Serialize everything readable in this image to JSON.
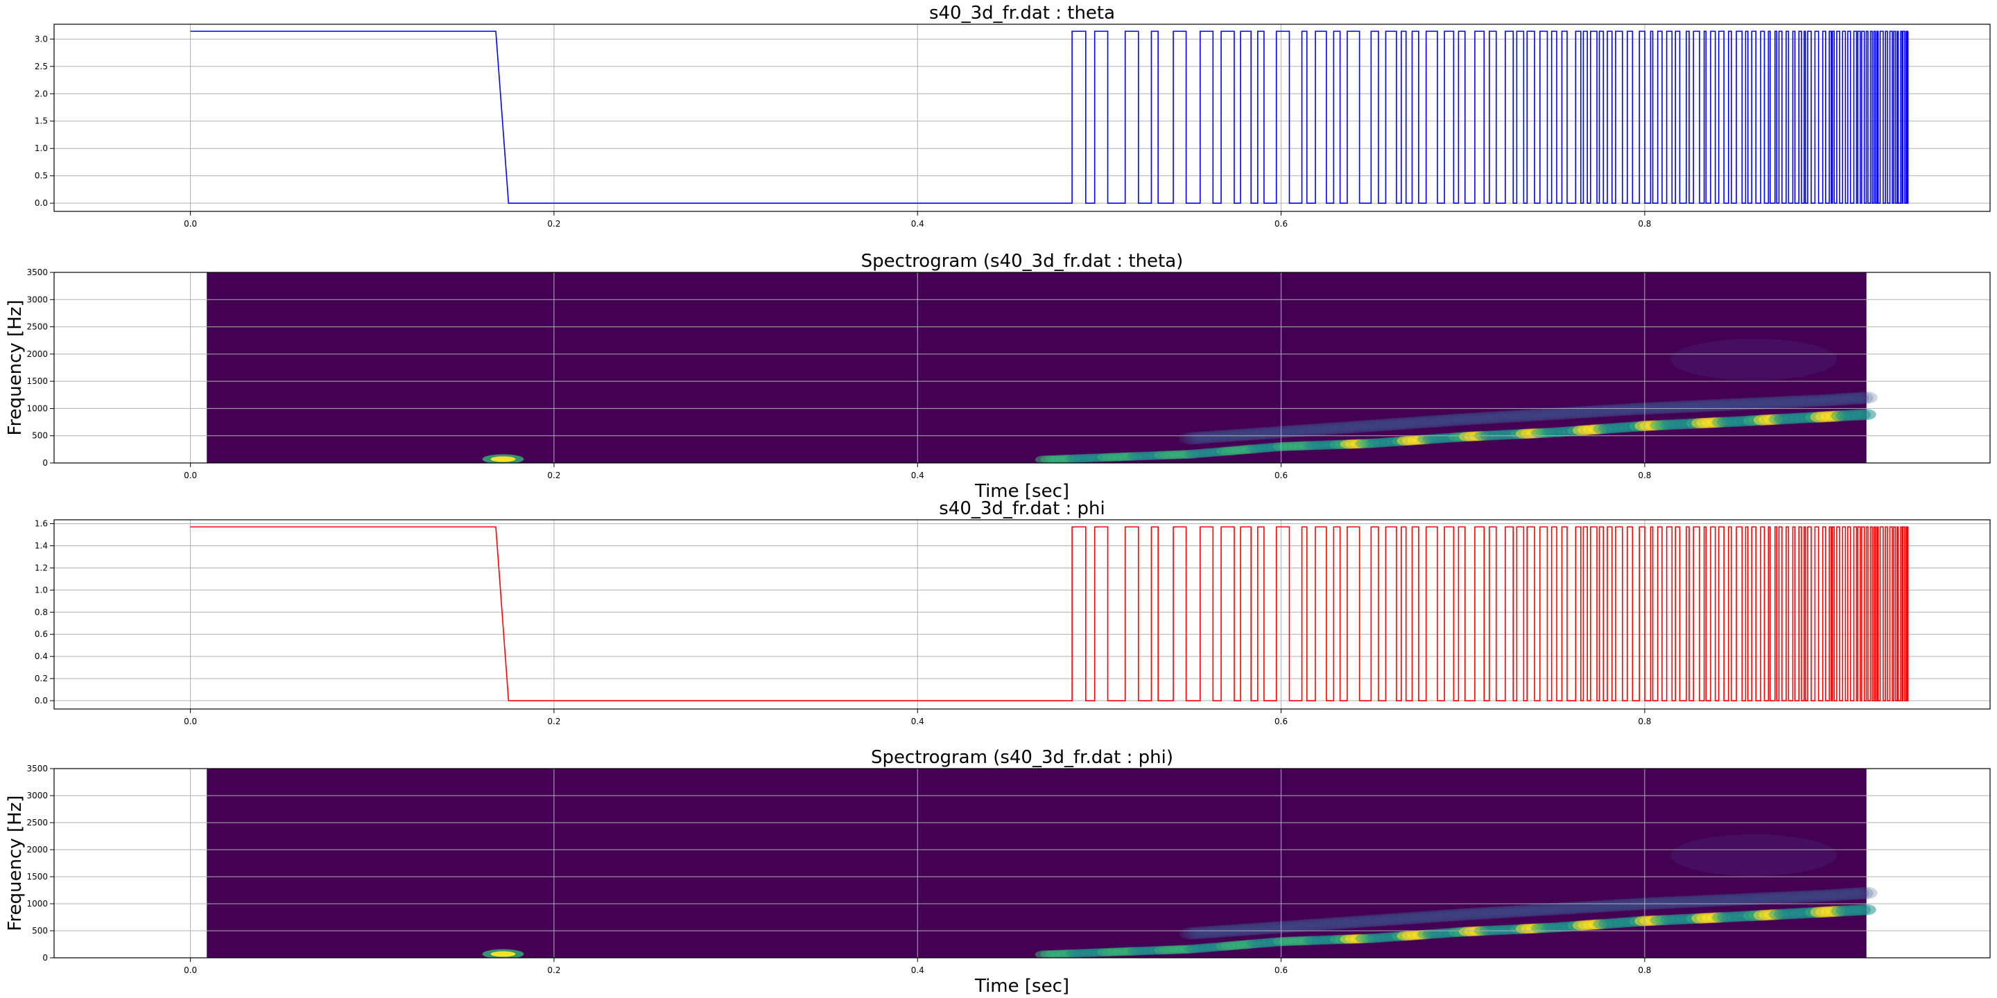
{
  "colors": {
    "theta_line": "#0000ff",
    "phi_line": "#ff0000",
    "spectrogram_background": "#440154",
    "grid": "#b0b0b0",
    "axes_frame": "#000000",
    "colormap": "viridis"
  },
  "chart_data": [
    {
      "type": "line",
      "title": "s40_3d_fr.dat : theta",
      "xlabel": "",
      "ylabel": "",
      "xlim": [
        -0.075,
        0.99
      ],
      "ylim": [
        -0.15,
        3.27
      ],
      "xticks": [
        0.0,
        0.2,
        0.4,
        0.6,
        0.8
      ],
      "xtick_labels": [
        "0.0",
        "0.2",
        "0.4",
        "0.6",
        "0.8"
      ],
      "yticks": [
        0.0,
        0.5,
        1.0,
        1.5,
        2.0,
        2.5,
        3.0
      ],
      "ytick_labels": [
        "0.0",
        "0.5",
        "1.0",
        "1.5",
        "2.0",
        "2.5",
        "3.0"
      ],
      "grid": true,
      "series": [
        {
          "color": "#0000ff",
          "high": 3.1416,
          "low": 0.0,
          "x": [
            0.0,
            0.168,
            0.175,
            0.485
          ],
          "y": [
            3.1416,
            3.1416,
            0.0,
            0.0
          ],
          "switching_start": 0.485,
          "switching_end": 0.945,
          "switching_character": "rapid alternation between 0.0 and 3.14, period shrinking from about 0.008 s at 0.49 s to about 0.001 s at 0.94 s"
        }
      ]
    },
    {
      "type": "heatmap",
      "title": "Spectrogram (s40_3d_fr.dat : theta)",
      "xlabel": "Time [sec]",
      "ylabel": "Frequency [Hz]",
      "xlim": [
        -0.075,
        0.99
      ],
      "ylim": [
        0,
        3500
      ],
      "data_extent": [
        0.009,
        0.922
      ],
      "xticks": [
        0.0,
        0.2,
        0.4,
        0.6,
        0.8
      ],
      "xtick_labels": [
        "0.0",
        "0.2",
        "0.4",
        "0.6",
        "0.8"
      ],
      "yticks": [
        0,
        500,
        1000,
        1500,
        2000,
        2500,
        3000,
        3500
      ],
      "ytick_labels": [
        "0",
        "500",
        "1000",
        "1500",
        "2000",
        "2500",
        "3000",
        "3500"
      ],
      "grid": true,
      "features": [
        {
          "name": "transition-blip",
          "time": 0.172,
          "frequency": 70,
          "intensity": "high"
        },
        {
          "name": "main-ridge",
          "time": [
            0.47,
            0.55,
            0.6,
            0.65,
            0.7,
            0.75,
            0.8,
            0.85,
            0.9,
            0.922
          ],
          "frequency": [
            60,
            160,
            300,
            360,
            480,
            560,
            680,
            760,
            850,
            890
          ],
          "intensity": "medium-high"
        },
        {
          "name": "harmonic-ridge",
          "time": [
            0.55,
            0.7,
            0.8,
            0.9,
            0.922
          ],
          "frequency": [
            450,
            800,
            1000,
            1150,
            1200
          ],
          "intensity": "low"
        }
      ]
    },
    {
      "type": "line",
      "title": "s40_3d_fr.dat : phi",
      "xlabel": "",
      "ylabel": "",
      "xlim": [
        -0.075,
        0.99
      ],
      "ylim": [
        -0.075,
        1.635
      ],
      "xticks": [
        0.0,
        0.2,
        0.4,
        0.6,
        0.8
      ],
      "xtick_labels": [
        "0.0",
        "0.2",
        "0.4",
        "0.6",
        "0.8"
      ],
      "yticks": [
        0.0,
        0.2,
        0.4,
        0.6,
        0.8,
        1.0,
        1.2,
        1.4,
        1.6
      ],
      "ytick_labels": [
        "0.0",
        "0.2",
        "0.4",
        "0.6",
        "0.8",
        "1.0",
        "1.2",
        "1.4",
        "1.6"
      ],
      "grid": true,
      "series": [
        {
          "color": "#ff0000",
          "high": 1.5708,
          "low": 0.0,
          "x": [
            0.0,
            0.168,
            0.175,
            0.485
          ],
          "y": [
            1.5708,
            1.5708,
            0.0,
            0.0
          ],
          "switching_start": 0.485,
          "switching_end": 0.945,
          "switching_character": "rapid alternation between 0.0 and 1.57, period shrinking from about 0.008 s at 0.49 s to about 0.001 s at 0.94 s"
        }
      ]
    },
    {
      "type": "heatmap",
      "title": "Spectrogram (s40_3d_fr.dat : phi)",
      "xlabel": "Time [sec]",
      "ylabel": "Frequency [Hz]",
      "xlim": [
        -0.075,
        0.99
      ],
      "ylim": [
        0,
        3500
      ],
      "data_extent": [
        0.009,
        0.922
      ],
      "xticks": [
        0.0,
        0.2,
        0.4,
        0.6,
        0.8
      ],
      "xtick_labels": [
        "0.0",
        "0.2",
        "0.4",
        "0.6",
        "0.8"
      ],
      "yticks": [
        0,
        500,
        1000,
        1500,
        2000,
        2500,
        3000,
        3500
      ],
      "ytick_labels": [
        "0",
        "500",
        "1000",
        "1500",
        "2000",
        "2500",
        "3000",
        "3500"
      ],
      "grid": true,
      "features": [
        {
          "name": "transition-blip",
          "time": 0.172,
          "frequency": 70,
          "intensity": "high"
        },
        {
          "name": "main-ridge",
          "time": [
            0.47,
            0.55,
            0.6,
            0.65,
            0.7,
            0.75,
            0.8,
            0.85,
            0.9,
            0.922
          ],
          "frequency": [
            60,
            160,
            300,
            360,
            480,
            560,
            680,
            760,
            850,
            890
          ],
          "intensity": "medium-high"
        },
        {
          "name": "harmonic-ridge",
          "time": [
            0.55,
            0.7,
            0.8,
            0.9,
            0.922
          ],
          "frequency": [
            450,
            800,
            1000,
            1150,
            1200
          ],
          "intensity": "low"
        }
      ]
    }
  ]
}
